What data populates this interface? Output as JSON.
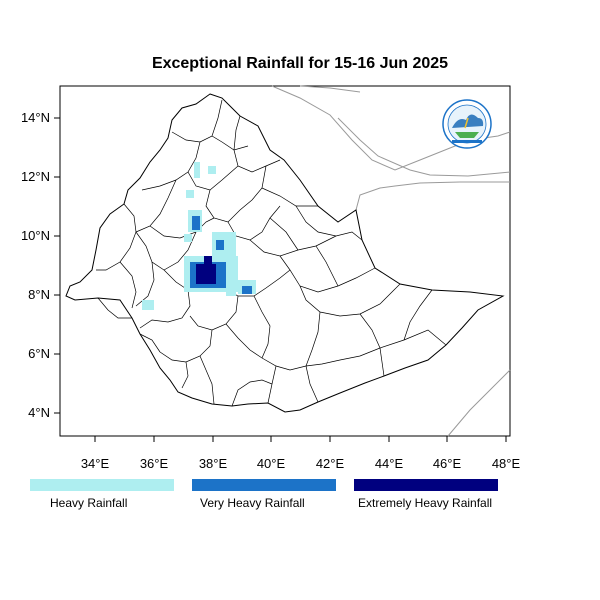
{
  "title": "Exceptional Rainfall for 15-16 Jun 2025",
  "colors": {
    "heavy": "#aeeef0",
    "very_heavy": "#1c73c8",
    "extremely_heavy": "#00007f",
    "border": "#000000",
    "neighbor": "#9a9a9a"
  },
  "logo": {
    "name": "meteorology-institute-logo"
  },
  "axes": {
    "x_ticks": [
      "34°E",
      "36°E",
      "38°E",
      "40°E",
      "42°E",
      "44°E",
      "46°E",
      "48°E"
    ],
    "y_ticks": [
      "14°N",
      "12°N",
      "10°N",
      "8°N",
      "6°N",
      "4°N"
    ]
  },
  "legend": [
    {
      "label": "Heavy Rainfall",
      "color": "#aeeef0"
    },
    {
      "label": "Very Heavy Rainfall",
      "color": "#1c73c8"
    },
    {
      "label": "Extremely Heavy Rainfall",
      "color": "#00007f"
    }
  ]
}
